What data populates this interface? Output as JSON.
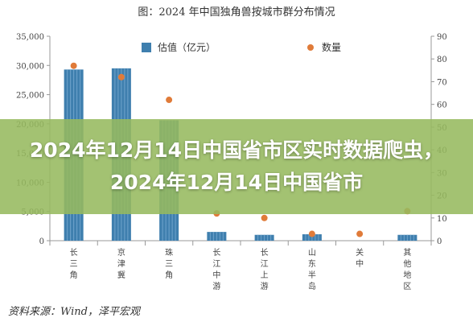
{
  "chart_data": {
    "type": "bar+scatter",
    "title": "图：2024 年中国独角兽按城市群分布情况",
    "categories": [
      "长三角",
      "京津冀",
      "珠三角",
      "长江中游",
      "长江上游",
      "山东半岛",
      "关中",
      "其他地区"
    ],
    "category_labels": [
      [
        "长",
        "三",
        "角"
      ],
      [
        "京",
        "津",
        "冀"
      ],
      [
        "珠",
        "三",
        "角"
      ],
      [
        "长",
        "江",
        "中",
        "游"
      ],
      [
        "长",
        "江",
        "上",
        "游"
      ],
      [
        "山",
        "东",
        "半",
        "岛"
      ],
      [
        "关",
        "中"
      ],
      [
        "其",
        "他",
        "地",
        "区"
      ]
    ],
    "series": [
      {
        "name": "估值（亿元）",
        "type": "bar",
        "axis": "left",
        "values": [
          29300,
          29500,
          20600,
          1500,
          1000,
          1100,
          0,
          1000
        ],
        "color": "#3f7fae"
      },
      {
        "name": "数量",
        "type": "scatter",
        "axis": "right",
        "values": [
          77,
          72,
          62,
          12,
          10,
          3,
          3,
          13
        ],
        "color": "#e07b39"
      }
    ],
    "left_axis": {
      "ylim": [
        0,
        35000
      ],
      "ticks": [
        "0",
        "5,000",
        "10,000",
        "15,000",
        "20,000",
        "25,000",
        "30,000",
        "35,000"
      ]
    },
    "right_axis": {
      "ylim": [
        0,
        90
      ],
      "ticks": [
        "0",
        "10",
        "20",
        "30",
        "40",
        "50",
        "60",
        "70",
        "80",
        "90"
      ]
    },
    "legend_placement": "top"
  },
  "source_text": "资料来源：Wind，泽平宏观",
  "overlay_text": "2024年12月14日中国省市区实时数据爬虫，2024年12月14日中国省市"
}
